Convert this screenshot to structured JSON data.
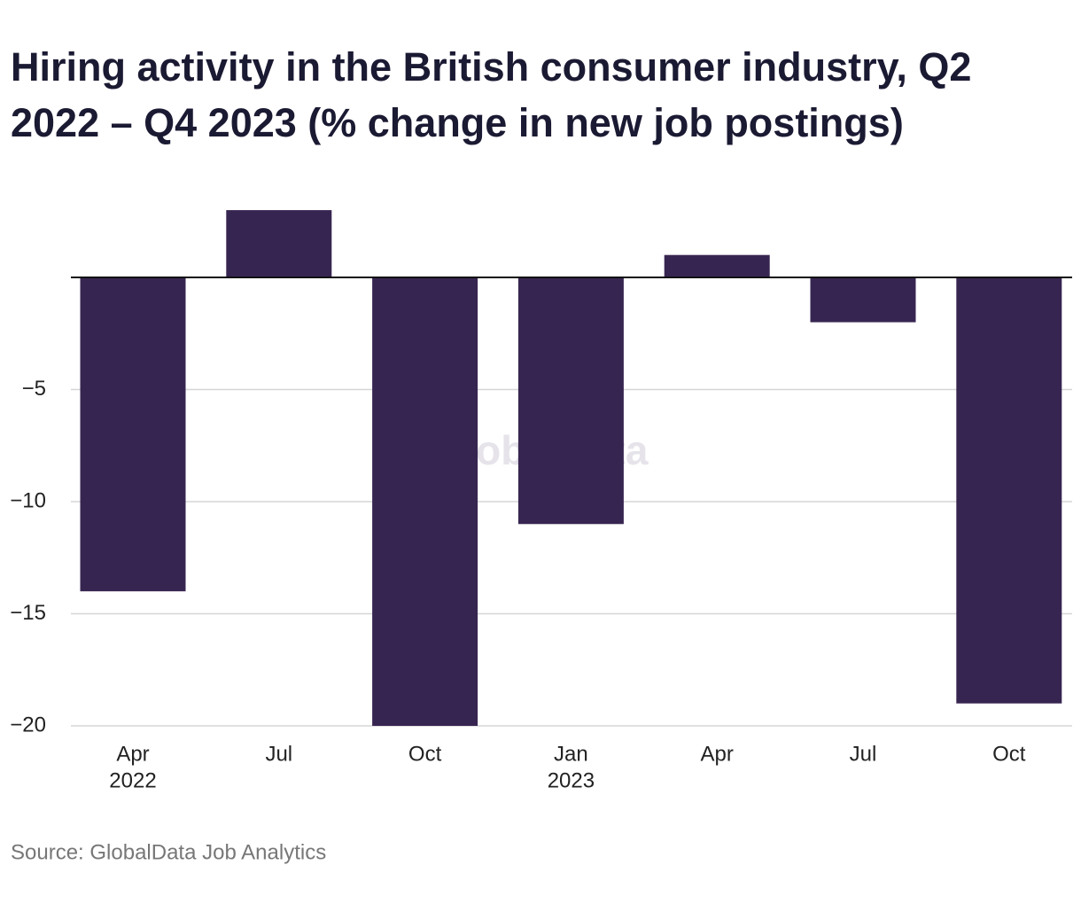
{
  "chart_data": {
    "type": "bar",
    "title": "Hiring activity in the British consumer industry, Q2 2022 – Q4 2023 (% change in new job postings)",
    "categories": [
      "Apr",
      "Jul",
      "Oct",
      "Jan",
      "Apr",
      "Jul",
      "Oct"
    ],
    "year_labels": [
      "2022",
      null,
      null,
      "2023",
      null,
      null,
      null
    ],
    "values": [
      -14,
      3,
      -20,
      -11,
      1,
      -2,
      -19
    ],
    "color": "#372551",
    "ylim": [
      -20,
      3.3
    ],
    "yticks": [
      {
        "value": -20,
        "label": "−20"
      },
      {
        "value": -15,
        "label": "−15"
      },
      {
        "value": -10,
        "label": "−10"
      },
      {
        "value": -5,
        "label": "−5"
      }
    ],
    "grid": true,
    "watermark": "GlobalData",
    "source": "Source: GlobalData Job Analytics"
  }
}
